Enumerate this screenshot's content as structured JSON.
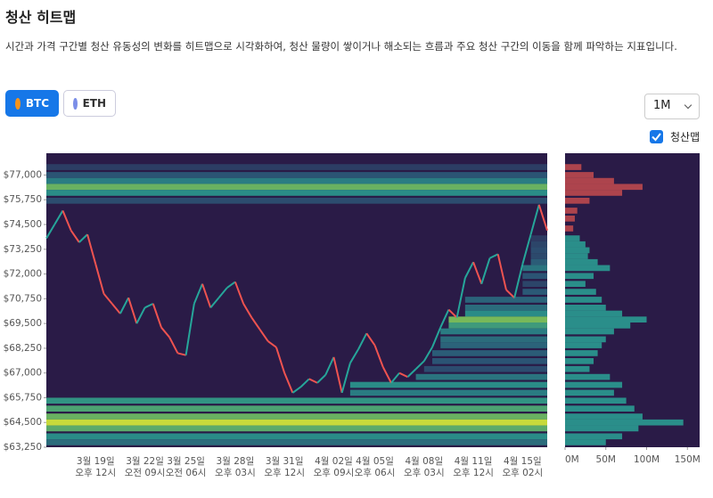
{
  "header": {
    "title": "청산 히트맵",
    "description": "시간과 가격 구간별 청산 유동성의 변화를 히트맵으로 시각화하여, 청산 물량이 쌓이거나 해소되는 흐름과 주요 청산 구간의 이동을 함께 파악하는 지표입니다."
  },
  "controls": {
    "assets": [
      "BTC",
      "ETH"
    ],
    "selected_asset": "BTC",
    "range": "1M",
    "toggle_label": "청산맵",
    "toggle_checked": true
  },
  "chart_data": {
    "type": "heatmap",
    "categories": [
      null,
      null,
      null,
      null,
      null,
      null,
      "3월 19일\n오후 12시",
      null,
      null,
      null,
      null,
      null,
      "3월 22일\n오전 09시",
      null,
      null,
      null,
      null,
      "3월 25일\n오전 06시",
      null,
      null,
      null,
      null,
      null,
      "3월 28일\n오후 03시",
      null,
      null,
      null,
      null,
      null,
      "3월 31일\n오후 12시",
      null,
      null,
      null,
      null,
      null,
      "4월 02일\n오후 09시",
      null,
      null,
      null,
      null,
      "4월 05일\n오후 06시",
      null,
      null,
      null,
      null,
      null,
      "4월 08일\n오후 03시",
      null,
      null,
      null,
      null,
      null,
      "4월 11일\n오후 12시",
      null,
      null,
      null,
      null,
      null,
      "4월 15일\n오후 02시",
      null,
      null,
      null
    ],
    "values": [
      73800,
      74500,
      75200,
      74200,
      73600,
      74000,
      72500,
      71000,
      70500,
      70000,
      70800,
      69500,
      70300,
      70500,
      69300,
      68800,
      68000,
      67900,
      70500,
      71500,
      70300,
      70800,
      71300,
      71600,
      70500,
      69800,
      69200,
      68600,
      68300,
      67000,
      66000,
      66300,
      66700,
      66500,
      66900,
      67800,
      66000,
      67500,
      68200,
      69000,
      68400,
      67300,
      66500,
      67000,
      66800,
      67200,
      67600,
      68300,
      69300,
      70200,
      69800,
      71800,
      72600,
      71500,
      72800,
      73000,
      71200,
      70800,
      72500,
      74000,
      75500,
      74200
    ],
    "up_color": "#26a69a",
    "down_color": "#ef5350",
    "ylim": [
      63250,
      78100
    ],
    "yticks": [
      {
        "value": 63250,
        "label": "$63,250"
      },
      {
        "value": 64500,
        "label": "$64,500"
      },
      {
        "value": 65750,
        "label": "$65,750"
      },
      {
        "value": 67000,
        "label": "$67,000"
      },
      {
        "value": 68250,
        "label": "$68,250"
      },
      {
        "value": 69500,
        "label": "$69,500"
      },
      {
        "value": 70750,
        "label": "$70,750"
      },
      {
        "value": 72000,
        "label": "$72,000"
      },
      {
        "value": 73250,
        "label": "$73,250"
      },
      {
        "value": 74500,
        "label": "$74,500"
      },
      {
        "value": 75750,
        "label": "$75,750"
      },
      {
        "value": 77000,
        "label": "$77,000"
      }
    ],
    "profile": {
      "prices": [
        77400,
        77000,
        76700,
        76400,
        76100,
        75700,
        75200,
        74800,
        74300,
        73800,
        73500,
        73200,
        72900,
        72600,
        72300,
        71900,
        71500,
        71100,
        70700,
        70300,
        70000,
        69700,
        69400,
        69100,
        68700,
        68400,
        68000,
        67600,
        67200,
        66800,
        66400,
        66000,
        65600,
        65200,
        64800,
        64500,
        64200,
        63800,
        63500
      ],
      "values": [
        20,
        35,
        60,
        95,
        70,
        30,
        15,
        12,
        10,
        18,
        25,
        30,
        28,
        40,
        55,
        35,
        25,
        38,
        45,
        50,
        70,
        100,
        80,
        60,
        50,
        45,
        40,
        35,
        30,
        55,
        70,
        60,
        75,
        85,
        95,
        145,
        90,
        70,
        50
      ],
      "short_color": "#d9534f",
      "long_color": "#2bb5a0"
    },
    "xlim": [
      0,
      165
    ],
    "xticks": [
      {
        "value": 0,
        "label": "0M"
      },
      {
        "value": 50,
        "label": "50M"
      },
      {
        "value": 100,
        "label": "100M"
      },
      {
        "value": 150,
        "label": "150M"
      }
    ],
    "background": "#2a1b47"
  }
}
